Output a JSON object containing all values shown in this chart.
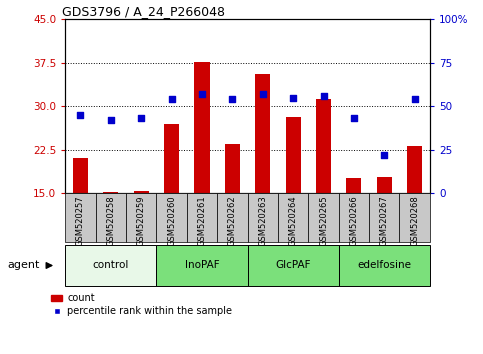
{
  "title": "GDS3796 / A_24_P266048",
  "samples": [
    "GSM520257",
    "GSM520258",
    "GSM520259",
    "GSM520260",
    "GSM520261",
    "GSM520262",
    "GSM520263",
    "GSM520264",
    "GSM520265",
    "GSM520266",
    "GSM520267",
    "GSM520268"
  ],
  "count_values": [
    21.0,
    15.2,
    15.3,
    27.0,
    37.6,
    23.5,
    35.5,
    28.2,
    31.2,
    17.5,
    17.8,
    23.2
  ],
  "percentile_values": [
    45,
    42,
    43,
    54,
    57,
    54,
    57,
    55,
    56,
    43,
    22,
    54
  ],
  "groups": [
    {
      "label": "control",
      "start": 0,
      "end": 3,
      "color": "#e8f8e8"
    },
    {
      "label": "InoPAF",
      "start": 3,
      "end": 6,
      "color": "#7be07b"
    },
    {
      "label": "GlcPAF",
      "start": 6,
      "end": 9,
      "color": "#7be07b"
    },
    {
      "label": "edelfosine",
      "start": 9,
      "end": 12,
      "color": "#7be07b"
    }
  ],
  "ylim_left": [
    15,
    45
  ],
  "ylim_right": [
    0,
    100
  ],
  "yticks_left": [
    15,
    22.5,
    30,
    37.5,
    45
  ],
  "yticks_right": [
    0,
    25,
    50,
    75,
    100
  ],
  "bar_color": "#cc0000",
  "dot_color": "#0000cc",
  "sample_bg_color": "#c8c8c8",
  "plot_bg": "#ffffff",
  "left_tick_color": "#cc0000",
  "right_tick_color": "#0000cc",
  "bar_width": 0.5,
  "dot_size": 22
}
